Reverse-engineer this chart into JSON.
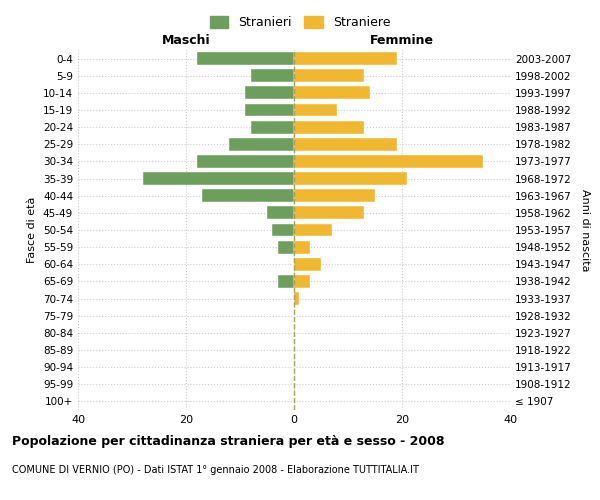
{
  "age_groups": [
    "100+",
    "95-99",
    "90-94",
    "85-89",
    "80-84",
    "75-79",
    "70-74",
    "65-69",
    "60-64",
    "55-59",
    "50-54",
    "45-49",
    "40-44",
    "35-39",
    "30-34",
    "25-29",
    "20-24",
    "15-19",
    "10-14",
    "5-9",
    "0-4"
  ],
  "birth_years": [
    "≤ 1907",
    "1908-1912",
    "1913-1917",
    "1918-1922",
    "1923-1927",
    "1928-1932",
    "1933-1937",
    "1938-1942",
    "1943-1947",
    "1948-1952",
    "1953-1957",
    "1958-1962",
    "1963-1967",
    "1968-1972",
    "1973-1977",
    "1978-1982",
    "1983-1987",
    "1988-1992",
    "1993-1997",
    "1998-2002",
    "2003-2007"
  ],
  "maschi": [
    0,
    0,
    0,
    0,
    0,
    0,
    0,
    3,
    0,
    3,
    4,
    5,
    17,
    28,
    18,
    12,
    8,
    9,
    9,
    8,
    18
  ],
  "femmine": [
    0,
    0,
    0,
    0,
    0,
    0,
    1,
    3,
    5,
    3,
    7,
    13,
    15,
    21,
    35,
    19,
    13,
    8,
    14,
    13,
    19
  ],
  "maschi_color": "#6d9e5e",
  "femmine_color": "#f0b830",
  "background_color": "#ffffff",
  "grid_color": "#cccccc",
  "title": "Popolazione per cittadinanza straniera per età e sesso - 2008",
  "subtitle": "COMUNE DI VERNIO (PO) - Dati ISTAT 1° gennaio 2008 - Elaborazione TUTTITALIA.IT",
  "xlabel_left": "Maschi",
  "xlabel_right": "Femmine",
  "ylabel_left": "Fasce di età",
  "ylabel_right": "Anni di nascita",
  "legend_stranieri": "Stranieri",
  "legend_straniere": "Straniere",
  "xlim": 40,
  "center_line_color": "#a0a060"
}
